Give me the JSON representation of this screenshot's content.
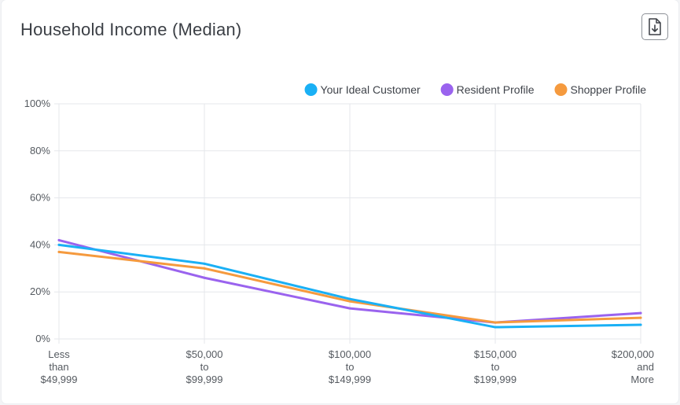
{
  "page": {
    "title": "Household Income (Median)"
  },
  "toolbar": {
    "download_icon": "download-icon"
  },
  "colors": {
    "your_ideal_customer": "#1ab0f5",
    "resident_profile": "#9a63ee",
    "shopper_profile": "#f59a3e",
    "grid": "#e5e7eb",
    "axis_text": "#555a60"
  },
  "chart_data": {
    "type": "line",
    "title": "Household Income (Median)",
    "xlabel": "",
    "ylabel": "",
    "categories": [
      [
        "Less",
        "than",
        "$49,999"
      ],
      [
        "$50,000",
        "to",
        "$99,999"
      ],
      [
        "$100,000",
        "to",
        "$149,999"
      ],
      [
        "$150,000",
        "to",
        "$199,999"
      ],
      [
        "$200,000",
        "and",
        "More"
      ]
    ],
    "y_ticks": [
      "0%",
      "20%",
      "40%",
      "60%",
      "80%",
      "100%"
    ],
    "ylim": [
      0,
      100
    ],
    "grid": true,
    "legend_position": "top-right",
    "series": [
      {
        "name": "Your Ideal Customer",
        "color": "#1ab0f5",
        "values": [
          40,
          32,
          17,
          5,
          6
        ]
      },
      {
        "name": "Resident Profile",
        "color": "#9a63ee",
        "values": [
          42,
          26,
          13,
          7,
          11
        ]
      },
      {
        "name": "Shopper Profile",
        "color": "#f59a3e",
        "values": [
          37,
          30,
          16,
          7,
          9
        ]
      }
    ]
  }
}
